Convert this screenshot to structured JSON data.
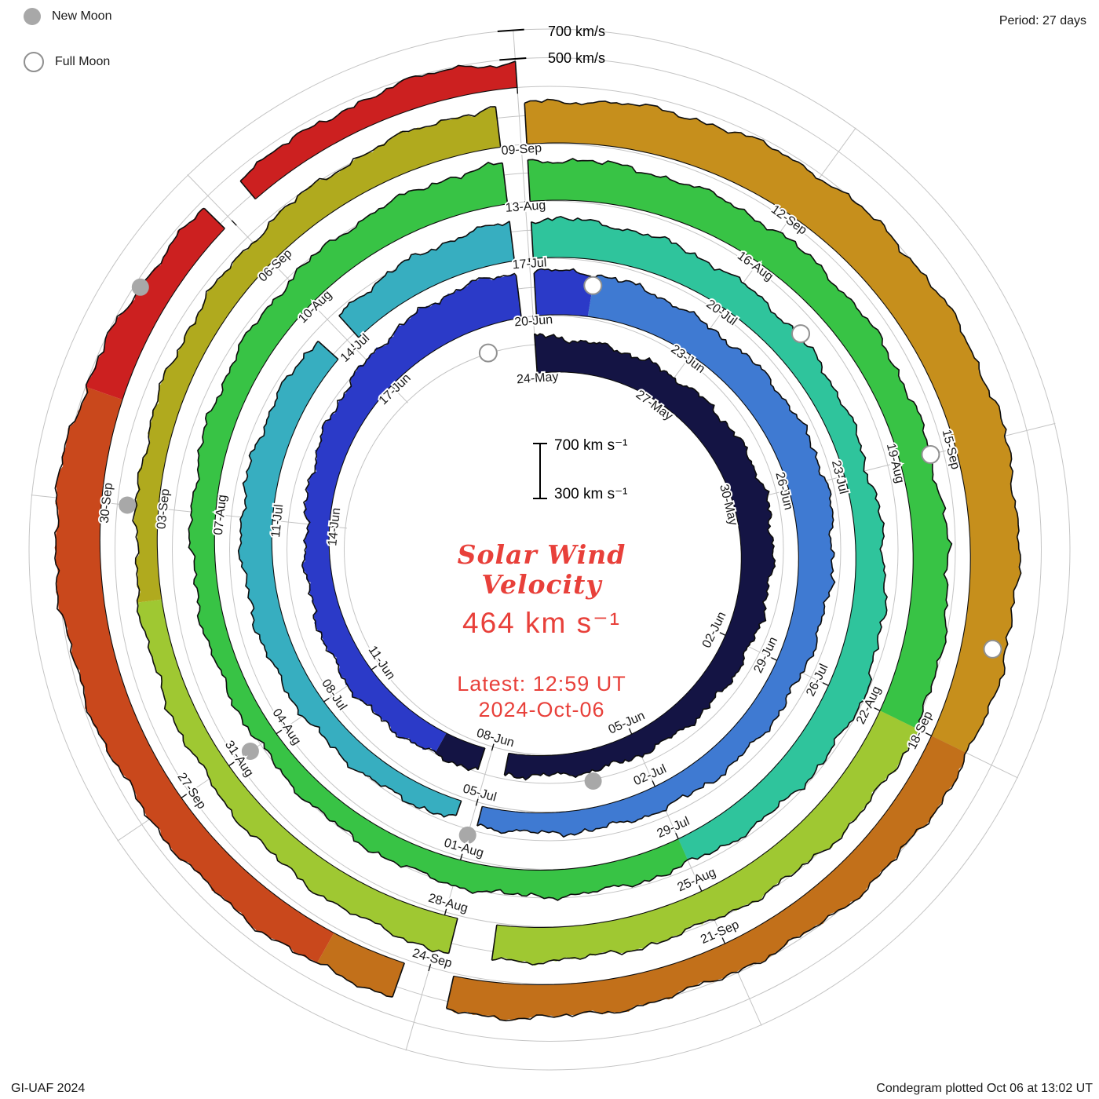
{
  "legend": {
    "new_moon_label": "New Moon",
    "full_moon_label": "Full Moon"
  },
  "header": {
    "period_label": "Period: 27 days"
  },
  "footer": {
    "credit": "GI-UAF 2024",
    "plotted_note": "Condegram plotted Oct 06 at 13:02 UT"
  },
  "seam_axis": {
    "label_700": "700 km/s",
    "label_500": "500 km/s"
  },
  "center": {
    "scale_top": "700 km s⁻¹",
    "scale_bottom": "300 km s⁻¹",
    "title_line1": "Solar Wind",
    "title_line2": "Velocity",
    "value": "464 km s⁻¹",
    "latest_line1": "Latest: 12:59 UT",
    "latest_line2": "2024-Oct-06",
    "accent_color": "#e8403a"
  },
  "chart_data": {
    "type": "spiral polar plot (condegram) of solar wind velocity",
    "period_days": 27,
    "start_date": "2024-05-24",
    "end_date": "2024-10-06",
    "velocity_range_kms": [
      300,
      700
    ],
    "grid_circle_levels_kms": [
      500,
      700
    ],
    "latest_value_kms": 464,
    "latest_time": "12:59 UT",
    "latest_date": "2024-Oct-06",
    "date_ticks": [
      {
        "day": 0,
        "label": "24-May"
      },
      {
        "day": 3,
        "label": "27-May"
      },
      {
        "day": 6,
        "label": "30-May"
      },
      {
        "day": 9,
        "label": "02-Jun"
      },
      {
        "day": 12,
        "label": "05-Jun"
      },
      {
        "day": 15,
        "label": "08-Jun"
      },
      {
        "day": 18,
        "label": "11-Jun"
      },
      {
        "day": 21,
        "label": "14-Jun"
      },
      {
        "day": 24,
        "label": "17-Jun"
      },
      {
        "day": 27,
        "label": "20-Jun"
      },
      {
        "day": 30,
        "label": "23-Jun"
      },
      {
        "day": 33,
        "label": "26-Jun"
      },
      {
        "day": 36,
        "label": "29-Jun"
      },
      {
        "day": 39,
        "label": "02-Jul"
      },
      {
        "day": 42,
        "label": "05-Jul"
      },
      {
        "day": 45,
        "label": "08-Jul"
      },
      {
        "day": 48,
        "label": "11-Jul"
      },
      {
        "day": 51,
        "label": "14-Jul"
      },
      {
        "day": 54,
        "label": "17-Jul"
      },
      {
        "day": 57,
        "label": "20-Jul"
      },
      {
        "day": 60,
        "label": "23-Jul"
      },
      {
        "day": 63,
        "label": "26-Jul"
      },
      {
        "day": 66,
        "label": "29-Jul"
      },
      {
        "day": 69,
        "label": "01-Aug"
      },
      {
        "day": 72,
        "label": "04-Aug"
      },
      {
        "day": 75,
        "label": "07-Aug"
      },
      {
        "day": 78,
        "label": "10-Aug"
      },
      {
        "day": 81,
        "label": "13-Aug"
      },
      {
        "day": 84,
        "label": "16-Aug"
      },
      {
        "day": 87,
        "label": "19-Aug"
      },
      {
        "day": 90,
        "label": "22-Aug"
      },
      {
        "day": 93,
        "label": "25-Aug"
      },
      {
        "day": 96,
        "label": "28-Aug"
      },
      {
        "day": 99,
        "label": "31-Aug"
      },
      {
        "day": 102,
        "label": "03-Sep"
      },
      {
        "day": 105,
        "label": "06-Sep"
      },
      {
        "day": 108,
        "label": "09-Sep"
      },
      {
        "day": 111,
        "label": "12-Sep"
      },
      {
        "day": 114,
        "label": "15-Sep"
      },
      {
        "day": 117,
        "label": "18-Sep"
      },
      {
        "day": 120,
        "label": "21-Sep"
      },
      {
        "day": 123,
        "label": "24-Sep"
      },
      {
        "day": 126,
        "label": "27-Sep"
      },
      {
        "day": 129,
        "label": "30-Sep"
      }
    ],
    "velocity_control_points_day_kms": [
      [
        0,
        560
      ],
      [
        1,
        520
      ],
      [
        3,
        505
      ],
      [
        6,
        535
      ],
      [
        9,
        490
      ],
      [
        12,
        455
      ],
      [
        14,
        440
      ],
      [
        16,
        470
      ],
      [
        18,
        495
      ],
      [
        21,
        465
      ],
      [
        24,
        545
      ],
      [
        26,
        615
      ],
      [
        28,
        600
      ],
      [
        30,
        530
      ],
      [
        33,
        565
      ],
      [
        36,
        495
      ],
      [
        39,
        465
      ],
      [
        42,
        430
      ],
      [
        45,
        470
      ],
      [
        48,
        520
      ],
      [
        51,
        500
      ],
      [
        54,
        575
      ],
      [
        57,
        515
      ],
      [
        60,
        465
      ],
      [
        63,
        555
      ],
      [
        66,
        485
      ],
      [
        69,
        480
      ],
      [
        72,
        435
      ],
      [
        75,
        465
      ],
      [
        78,
        520
      ],
      [
        81,
        585
      ],
      [
        84,
        550
      ],
      [
        87,
        515
      ],
      [
        90,
        590
      ],
      [
        93,
        515
      ],
      [
        96,
        545
      ],
      [
        99,
        470
      ],
      [
        102,
        450
      ],
      [
        105,
        500
      ],
      [
        108,
        585
      ],
      [
        111,
        640
      ],
      [
        114,
        655
      ],
      [
        116,
        615
      ],
      [
        118,
        560
      ],
      [
        120,
        505
      ],
      [
        123,
        545
      ],
      [
        126,
        560
      ],
      [
        129,
        620
      ],
      [
        131,
        520
      ],
      [
        133,
        470
      ],
      [
        134.5,
        505
      ],
      [
        135,
        464
      ]
    ],
    "noise_amplitude_kms": 18,
    "gaps_days": [
      [
        14.65,
        15.15
      ],
      [
        41.9,
        42.25
      ],
      [
        50.7,
        51.15
      ],
      [
        95.4,
        95.85
      ],
      [
        122.75,
        123.25
      ],
      [
        131.9,
        132.3
      ]
    ],
    "color_segments": [
      {
        "to_day": 16,
        "color": "#141444"
      },
      {
        "to_day": 28,
        "color": "#2b3ac8"
      },
      {
        "to_day": 42,
        "color": "#3f7ad2"
      },
      {
        "to_day": 54,
        "color": "#37aec0"
      },
      {
        "to_day": 66,
        "color": "#2fc49c"
      },
      {
        "to_day": 90,
        "color": "#38c345"
      },
      {
        "to_day": 101,
        "color": "#9fc832"
      },
      {
        "to_day": 108,
        "color": "#b0aa1e"
      },
      {
        "to_day": 117,
        "color": "#c68f1c"
      },
      {
        "to_day": 124,
        "color": "#c2701a"
      },
      {
        "to_day": 130,
        "color": "#c9481c"
      },
      {
        "to_day": 136,
        "color": "#cc2020"
      }
    ],
    "moons": [
      {
        "day": -1,
        "date": "2024-05-23",
        "type": "full"
      },
      {
        "day": 13,
        "date": "2024-06-06",
        "type": "new"
      },
      {
        "day": 28,
        "date": "2024-06-21",
        "type": "full"
      },
      {
        "day": 42,
        "date": "2024-07-05",
        "type": "new"
      },
      {
        "day": 58,
        "date": "2024-07-21",
        "type": "full"
      },
      {
        "day": 72,
        "date": "2024-08-04",
        "type": "new"
      },
      {
        "day": 87,
        "date": "2024-08-19",
        "type": "full"
      },
      {
        "day": 102,
        "date": "2024-09-03",
        "type": "new"
      },
      {
        "day": 116,
        "date": "2024-09-17",
        "type": "full"
      },
      {
        "day": 131,
        "date": "2024-10-02",
        "type": "new"
      }
    ],
    "moon_style": {
      "new_fill": "#a8a8a8",
      "full_fill": "#ffffff",
      "full_stroke": "#909090"
    }
  }
}
